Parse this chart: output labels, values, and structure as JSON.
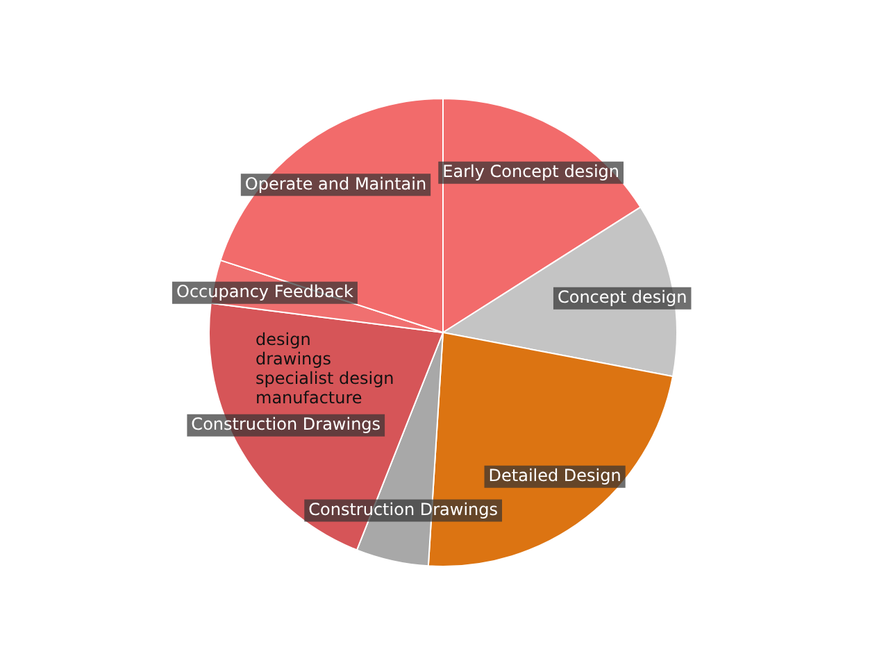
{
  "chart_data": {
    "type": "pie",
    "categories": [
      "Early Concept design",
      "Concept design",
      "Detailed Design",
      "Construction Drawings",
      "Construction Drawings",
      "Occupancy Feedback",
      "Operate and Maintain"
    ],
    "values": [
      16,
      12,
      23,
      5,
      21,
      3,
      20
    ],
    "colors": [
      "#f26b6b",
      "#c4c4c4",
      "#dc7412",
      "#a8a8a8",
      "#d65558",
      "#f07070",
      "#f26b6b"
    ],
    "annotations": [
      "design",
      "drawings",
      "specialist design",
      "manufacture"
    ],
    "legend": false
  }
}
